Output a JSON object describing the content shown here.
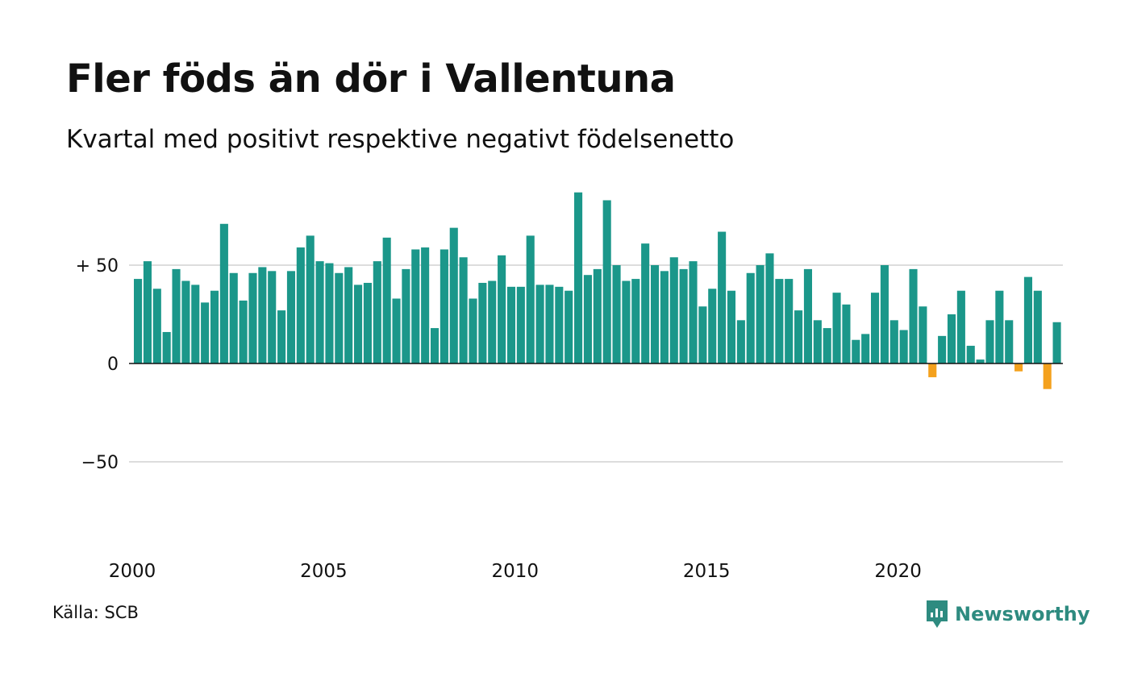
{
  "title": "Fler föds än dör i Vallentuna",
  "subtitle": "Kvartal med positivt respektive negativt födelsenetto",
  "source": "Källa: SCB",
  "brand": {
    "name": "Newsworthy",
    "icon": "newsworthy-logo-icon"
  },
  "colors": {
    "positive": "#1b978a",
    "negative": "#f4a11d",
    "grid": "#dddddd",
    "zero": "#111111"
  },
  "chart_data": {
    "type": "bar",
    "ylim": [
      -100,
      90
    ],
    "yticks": [
      {
        "value": 50,
        "label": "+ 50"
      },
      {
        "value": 0,
        "label": "0"
      },
      {
        "value": -50,
        "label": "−50"
      }
    ],
    "xticks": [
      "2000",
      "2005",
      "2010",
      "2015",
      "2020"
    ],
    "first_year": 2000,
    "quarters_per_year": 4,
    "values": [
      43,
      52,
      38,
      16,
      48,
      42,
      40,
      31,
      37,
      71,
      46,
      32,
      46,
      49,
      47,
      27,
      47,
      59,
      65,
      52,
      51,
      46,
      49,
      40,
      41,
      52,
      64,
      33,
      48,
      58,
      59,
      18,
      58,
      69,
      54,
      33,
      41,
      42,
      55,
      39,
      39,
      65,
      40,
      40,
      39,
      37,
      87,
      45,
      48,
      83,
      50,
      42,
      43,
      61,
      50,
      47,
      54,
      48,
      52,
      29,
      38,
      67,
      37,
      22,
      46,
      50,
      56,
      43,
      43,
      27,
      48,
      22,
      18,
      36,
      30,
      12,
      15,
      36,
      50,
      22,
      17,
      48,
      29,
      -7,
      14,
      25,
      37,
      9,
      2,
      22,
      37,
      22,
      -4,
      44,
      37,
      -13,
      21
    ]
  }
}
